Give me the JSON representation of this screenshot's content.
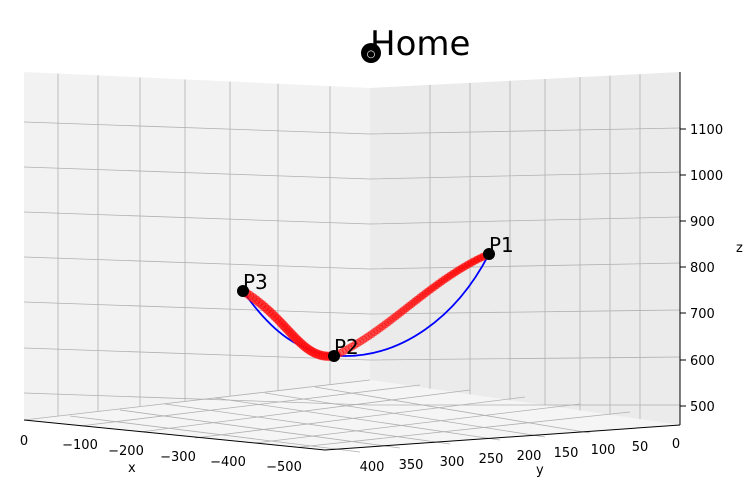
{
  "chart_data": {
    "type": "scatter",
    "projection": "3d",
    "title": "Home",
    "xlabel": "x",
    "ylabel": "y",
    "zlabel": "z",
    "x_ticks": [
      "0",
      "−100",
      "−200",
      "−300",
      "−400",
      "−500"
    ],
    "y_ticks": [
      "400",
      "350",
      "300",
      "250",
      "200",
      "150",
      "100",
      "50",
      "0"
    ],
    "z_ticks": [
      "500",
      "600",
      "700",
      "800",
      "900",
      "1000",
      "1100"
    ],
    "grid": true,
    "points": [
      {
        "label": "P1",
        "x": 0,
        "y": 0,
        "z": 820
      },
      {
        "label": "P2",
        "x": -250,
        "y": 200,
        "z": 600
      },
      {
        "label": "P3",
        "x": -400,
        "y": 300,
        "z": 740
      }
    ],
    "home_marker": {
      "label": "○"
    },
    "series": [
      {
        "style": "line",
        "color": "#0000ff"
      },
      {
        "style": "markers",
        "color": "#ff0000"
      }
    ]
  }
}
